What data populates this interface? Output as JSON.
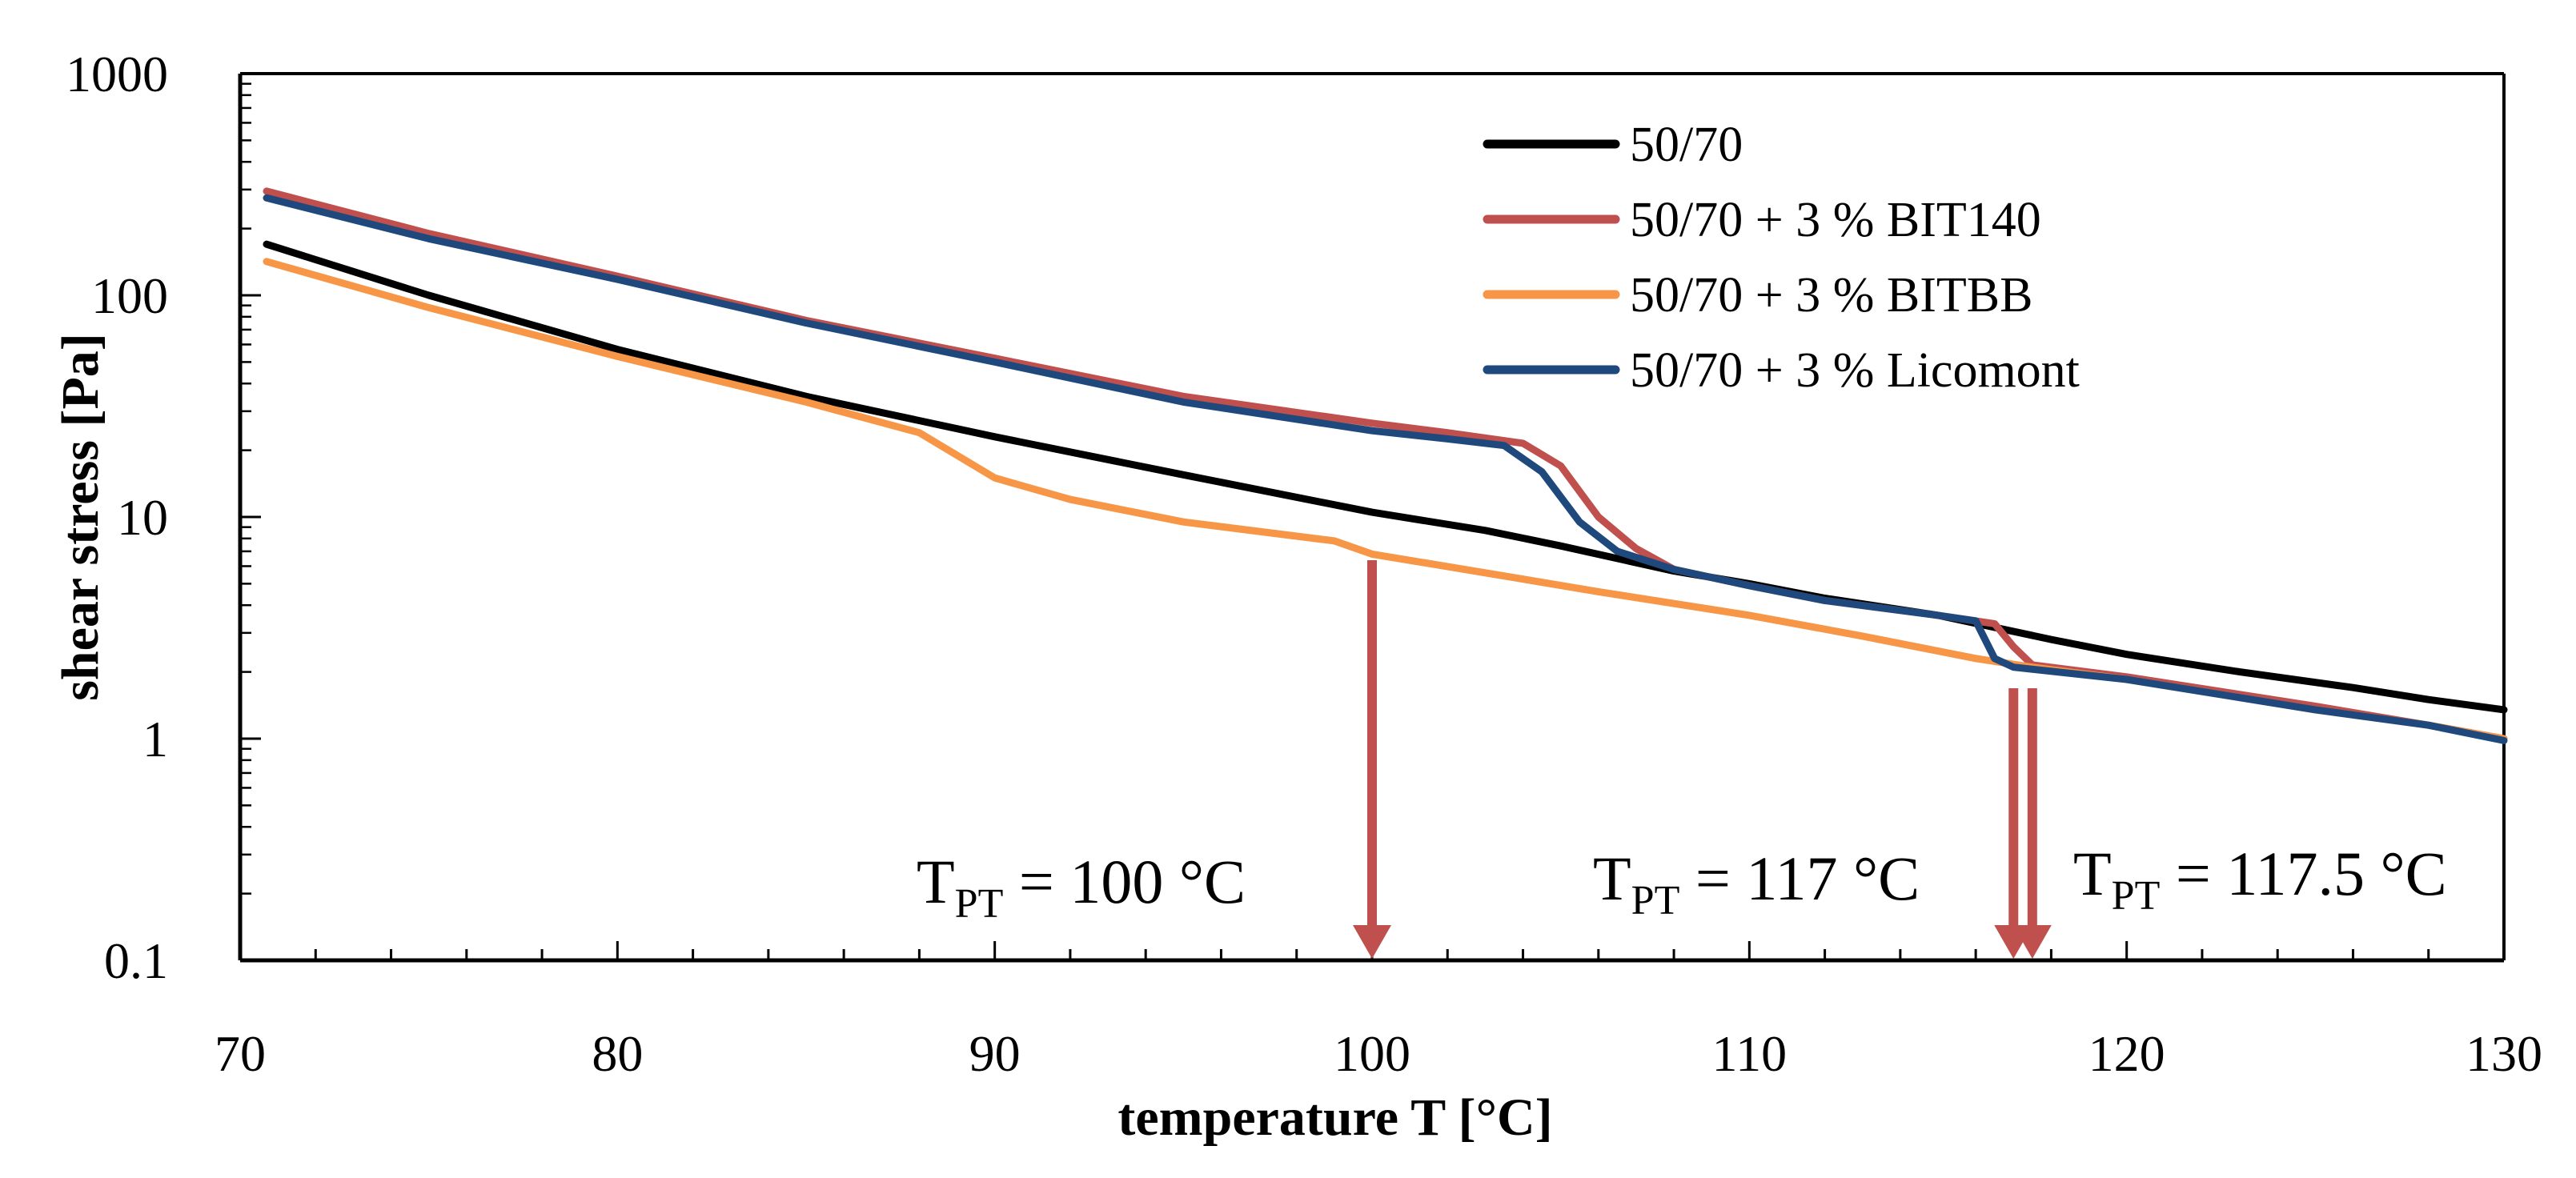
{
  "chart_data": {
    "type": "line",
    "title": "",
    "xlabel": "temperature T [°C]",
    "ylabel": "shear stress [Pa]",
    "x_scale": "linear",
    "y_scale": "log",
    "xlim": [
      70,
      130
    ],
    "ylim": [
      0.1,
      1000
    ],
    "x_ticks": [
      70,
      80,
      90,
      100,
      110,
      120,
      130
    ],
    "x_tick_labels": [
      "70",
      "80",
      "90",
      "100",
      "110",
      "120",
      "130"
    ],
    "y_ticks": [
      0.1,
      1,
      10,
      100,
      1000
    ],
    "y_tick_labels": [
      "0.1",
      "1",
      "10",
      "100",
      "1000"
    ],
    "legend_position": "top-right",
    "series": [
      {
        "name": "50/70",
        "color": "#000000",
        "points": [
          [
            70.7,
            170
          ],
          [
            75,
            100
          ],
          [
            80,
            57
          ],
          [
            85,
            35
          ],
          [
            90,
            23
          ],
          [
            95,
            15.5
          ],
          [
            100,
            10.5
          ],
          [
            103,
            8.7
          ],
          [
            105,
            7.4
          ],
          [
            108,
            5.7
          ],
          [
            110,
            5.0
          ],
          [
            112,
            4.3
          ],
          [
            115,
            3.6
          ],
          [
            118,
            2.8
          ],
          [
            120,
            2.4
          ],
          [
            123,
            2.0
          ],
          [
            126,
            1.7
          ],
          [
            128,
            1.5
          ],
          [
            130,
            1.35
          ]
        ]
      },
      {
        "name": "50/70 + 3 % BIT140",
        "color": "#C0504D",
        "points": [
          [
            70.7,
            295
          ],
          [
            75,
            190
          ],
          [
            80,
            122
          ],
          [
            85,
            77
          ],
          [
            90,
            52
          ],
          [
            95,
            35
          ],
          [
            100,
            26.5
          ],
          [
            102,
            24
          ],
          [
            104,
            21.5
          ],
          [
            105,
            17
          ],
          [
            106,
            10
          ],
          [
            107,
            7.2
          ],
          [
            108,
            5.8
          ],
          [
            110,
            4.9
          ],
          [
            112,
            4.2
          ],
          [
            115,
            3.6
          ],
          [
            116.5,
            3.3
          ],
          [
            117,
            2.6
          ],
          [
            117.5,
            2.15
          ],
          [
            120,
            1.9
          ],
          [
            125,
            1.4
          ],
          [
            128,
            1.15
          ],
          [
            130,
            1.0
          ]
        ]
      },
      {
        "name": "50/70 + 3 % BITBB",
        "color": "#F79646",
        "points": [
          [
            70.7,
            142
          ],
          [
            75,
            88
          ],
          [
            80,
            53
          ],
          [
            85,
            33
          ],
          [
            88,
            24
          ],
          [
            90,
            15
          ],
          [
            92,
            12
          ],
          [
            95,
            9.5
          ],
          [
            99,
            7.8
          ],
          [
            100,
            6.8
          ],
          [
            103,
            5.6
          ],
          [
            106,
            4.6
          ],
          [
            110,
            3.6
          ],
          [
            113,
            2.9
          ],
          [
            116,
            2.3
          ],
          [
            117.5,
            2.1
          ],
          [
            120,
            1.85
          ],
          [
            125,
            1.35
          ],
          [
            128,
            1.15
          ],
          [
            130,
            1.0
          ]
        ]
      },
      {
        "name": "50/70 + 3 % Licomont",
        "color": "#1F497D",
        "points": [
          [
            70.7,
            275
          ],
          [
            75,
            180
          ],
          [
            80,
            118
          ],
          [
            85,
            75
          ],
          [
            90,
            50
          ],
          [
            95,
            33
          ],
          [
            100,
            24.5
          ],
          [
            102,
            22.5
          ],
          [
            103.5,
            21
          ],
          [
            104.5,
            16
          ],
          [
            105.5,
            9.5
          ],
          [
            106.5,
            7
          ],
          [
            108,
            5.8
          ],
          [
            110,
            4.9
          ],
          [
            112,
            4.2
          ],
          [
            115,
            3.6
          ],
          [
            116,
            3.4
          ],
          [
            116.5,
            2.3
          ],
          [
            117,
            2.1
          ],
          [
            120,
            1.85
          ],
          [
            125,
            1.35
          ],
          [
            128,
            1.15
          ],
          [
            130,
            0.98
          ]
        ]
      }
    ],
    "annotations": [
      {
        "label_main": "T",
        "label_sub": "PT",
        "label_value": " = 100 °C",
        "arrow_x": 100
      },
      {
        "label_main": "T",
        "label_sub": "PT",
        "label_value": " = 117 °C",
        "arrow_x": 117
      },
      {
        "label_main": "T",
        "label_sub": "PT",
        "label_value": " = 117.5 °C",
        "arrow_x": 117.5
      }
    ],
    "annotation_color": "#C0504D"
  }
}
